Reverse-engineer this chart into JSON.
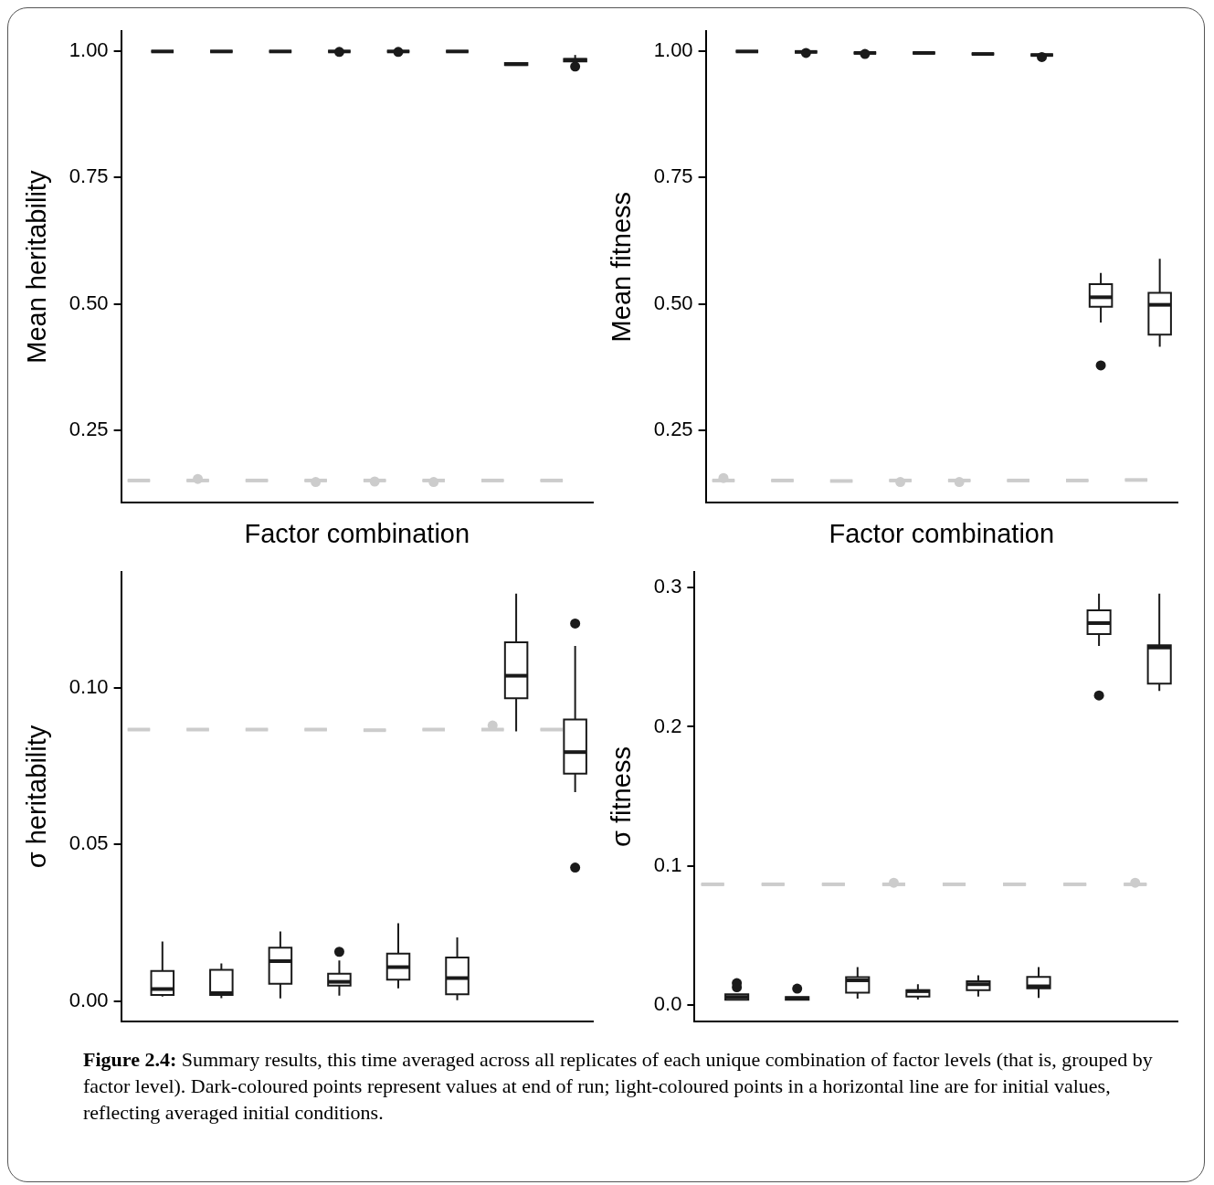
{
  "chart_data": [
    {
      "type": "box",
      "xlabel": "Factor combination",
      "ylabel": "Mean heritability",
      "categories": [
        null,
        null,
        null,
        null,
        null,
        null,
        null,
        null
      ],
      "ylim": [
        0.106,
        1.04
      ],
      "yticks": [
        0.25,
        {
          "value": 0.5,
          "label": "0.50"
        },
        0.75,
        {
          "value": 1,
          "label": "1.00"
        }
      ],
      "tick_labels": "y",
      "series": [
        {
          "color": "#cccccc",
          "boxes": [
            {
              "low": 0.15,
              "q1": 0.15,
              "median": 0.15,
              "q3": 0.15,
              "high": 0.15
            },
            {
              "low": 0.15,
              "q1": 0.15,
              "median": 0.15,
              "q3": 0.15,
              "high": 0.15,
              "outliers": [
                0.153
              ]
            },
            {
              "low": 0.15,
              "q1": 0.15,
              "median": 0.15,
              "q3": 0.15,
              "high": 0.15
            },
            {
              "low": 0.15,
              "q1": 0.15,
              "median": 0.15,
              "q3": 0.15,
              "high": 0.15,
              "outliers": [
                0.147
              ]
            },
            {
              "low": 0.15,
              "q1": 0.15,
              "median": 0.15,
              "q3": 0.15,
              "high": 0.15,
              "outliers": [
                0.148
              ]
            },
            {
              "low": 0.15,
              "q1": 0.15,
              "median": 0.15,
              "q3": 0.15,
              "high": 0.15,
              "outliers": [
                0.147
              ]
            },
            {
              "low": 0.15,
              "q1": 0.15,
              "median": 0.15,
              "q3": 0.15,
              "high": 0.15
            },
            {
              "low": 0.15,
              "q1": 0.15,
              "median": 0.15,
              "q3": 0.15,
              "high": 0.15
            }
          ]
        },
        {
          "color": "#1a1a1a",
          "boxes": [
            {
              "low": 1,
              "q1": 1,
              "median": 1,
              "q3": 1,
              "high": 1
            },
            {
              "low": 1,
              "q1": 1,
              "median": 1,
              "q3": 1,
              "high": 1
            },
            {
              "low": 1,
              "q1": 1,
              "median": 1,
              "q3": 1,
              "high": 1
            },
            {
              "low": 1,
              "q1": 1,
              "median": 1,
              "q3": 1,
              "high": 1,
              "outliers": [
                0.999
              ]
            },
            {
              "low": 1,
              "q1": 1,
              "median": 1,
              "q3": 1,
              "high": 1,
              "outliers": [
                0.999
              ]
            },
            {
              "low": 1,
              "q1": 1,
              "median": 1,
              "q3": 1,
              "high": 1
            },
            {
              "low": 0.973,
              "q1": 0.973,
              "median": 0.975,
              "q3": 0.977,
              "high": 0.977
            },
            {
              "low": 0.98,
              "q1": 0.98,
              "median": 0.983,
              "q3": 0.985,
              "high": 0.993,
              "outliers": [
                0.97
              ]
            }
          ]
        }
      ]
    },
    {
      "type": "box",
      "xlabel": "Factor combination",
      "ylabel": "Mean fitness",
      "categories": [
        null,
        null,
        null,
        null,
        null,
        null,
        null,
        null
      ],
      "ylim": [
        0.106,
        1.04
      ],
      "yticks": [
        0.25,
        {
          "value": 0.5,
          "label": "0.50"
        },
        0.75,
        {
          "value": 1,
          "label": "1.00"
        }
      ],
      "tick_labels": "y",
      "series": [
        {
          "color": "#cccccc",
          "boxes": [
            {
              "low": 0.15,
              "q1": 0.15,
              "median": 0.15,
              "q3": 0.15,
              "high": 0.15,
              "outliers": [
                0.155
              ]
            },
            {
              "low": 0.15,
              "q1": 0.15,
              "median": 0.15,
              "q3": 0.15,
              "high": 0.15
            },
            {
              "low": 0.149,
              "q1": 0.149,
              "median": 0.149,
              "q3": 0.149,
              "high": 0.149
            },
            {
              "low": 0.15,
              "q1": 0.15,
              "median": 0.15,
              "q3": 0.15,
              "high": 0.15,
              "outliers": [
                0.147
              ]
            },
            {
              "low": 0.15,
              "q1": 0.15,
              "median": 0.15,
              "q3": 0.15,
              "high": 0.15,
              "outliers": [
                0.147
              ]
            },
            {
              "low": 0.15,
              "q1": 0.15,
              "median": 0.15,
              "q3": 0.15,
              "high": 0.15
            },
            {
              "low": 0.15,
              "q1": 0.15,
              "median": 0.15,
              "q3": 0.15,
              "high": 0.15
            },
            {
              "low": 0.151,
              "q1": 0.151,
              "median": 0.151,
              "q3": 0.151,
              "high": 0.151
            }
          ]
        },
        {
          "color": "#1a1a1a",
          "boxes": [
            {
              "low": 1,
              "q1": 1,
              "median": 1,
              "q3": 1,
              "high": 1
            },
            {
              "low": 0.999,
              "q1": 0.999,
              "median": 0.999,
              "q3": 0.999,
              "high": 0.999,
              "outliers": [
                0.997
              ]
            },
            {
              "low": 0.997,
              "q1": 0.997,
              "median": 0.997,
              "q3": 0.997,
              "high": 0.997,
              "outliers": [
                0.995
              ]
            },
            {
              "low": 0.997,
              "q1": 0.997,
              "median": 0.997,
              "q3": 0.997,
              "high": 0.997
            },
            {
              "low": 0.995,
              "q1": 0.995,
              "median": 0.995,
              "q3": 0.995,
              "high": 0.995
            },
            {
              "low": 0.993,
              "q1": 0.993,
              "median": 0.993,
              "q3": 0.993,
              "high": 0.993,
              "outliers": [
                0.989
              ]
            },
            {
              "low": 0.463,
              "q1": 0.494,
              "median": 0.513,
              "q3": 0.539,
              "high": 0.561,
              "outliers": [
                0.378
              ]
            },
            {
              "low": 0.415,
              "q1": 0.439,
              "median": 0.498,
              "q3": 0.522,
              "high": 0.589
            }
          ]
        }
      ]
    },
    {
      "type": "box",
      "ylabel": "σ heritability",
      "categories": [
        null,
        null,
        null,
        null,
        null,
        null,
        null,
        null
      ],
      "ylim": [
        -0.0065,
        0.137
      ],
      "yticks": [
        {
          "value": 0,
          "label": "0.00"
        },
        {
          "value": 0.05,
          "label": "0.05"
        },
        {
          "value": 0.1,
          "label": "0.10"
        }
      ],
      "tick_labels": "y",
      "series": [
        {
          "color": "#cccccc",
          "boxes": [
            {
              "low": 0.0867,
              "q1": 0.0867,
              "median": 0.0867,
              "q3": 0.0867,
              "high": 0.0867
            },
            {
              "low": 0.0867,
              "q1": 0.0867,
              "median": 0.0867,
              "q3": 0.0867,
              "high": 0.0867
            },
            {
              "low": 0.0867,
              "q1": 0.0867,
              "median": 0.0867,
              "q3": 0.0867,
              "high": 0.0867
            },
            {
              "low": 0.0867,
              "q1": 0.0867,
              "median": 0.0867,
              "q3": 0.0867,
              "high": 0.0867
            },
            {
              "low": 0.0865,
              "q1": 0.0865,
              "median": 0.0865,
              "q3": 0.0865,
              "high": 0.0865
            },
            {
              "low": 0.0867,
              "q1": 0.0867,
              "median": 0.0867,
              "q3": 0.0867,
              "high": 0.0867
            },
            {
              "low": 0.0867,
              "q1": 0.0867,
              "median": 0.0867,
              "q3": 0.0867,
              "high": 0.0867,
              "outliers": [
                0.088
              ]
            },
            {
              "low": 0.0867,
              "q1": 0.0867,
              "median": 0.0867,
              "q3": 0.0867,
              "high": 0.0867
            }
          ]
        },
        {
          "color": "#1a1a1a",
          "boxes": [
            {
              "low": 0.0014,
              "q1": 0.0019,
              "median": 0.0038,
              "q3": 0.0096,
              "high": 0.019
            },
            {
              "low": 0.0009,
              "q1": 0.0019,
              "median": 0.0025,
              "q3": 0.0099,
              "high": 0.012
            },
            {
              "low": 0.0008,
              "q1": 0.0055,
              "median": 0.0127,
              "q3": 0.017,
              "high": 0.0222
            },
            {
              "low": 0.0017,
              "q1": 0.0049,
              "median": 0.0061,
              "q3": 0.0087,
              "high": 0.0129,
              "outliers": [
                0.0157
              ]
            },
            {
              "low": 0.004,
              "q1": 0.0068,
              "median": 0.0108,
              "q3": 0.0151,
              "high": 0.0248
            },
            {
              "low": 0.0002,
              "q1": 0.0021,
              "median": 0.0073,
              "q3": 0.0139,
              "high": 0.0203
            },
            {
              "low": 0.0861,
              "q1": 0.0967,
              "median": 0.1039,
              "q3": 0.1146,
              "high": 0.1301
            },
            {
              "low": 0.0667,
              "q1": 0.0726,
              "median": 0.0795,
              "q3": 0.0899,
              "high": 0.1134,
              "outliers": [
                0.1206,
                0.0426
              ]
            }
          ]
        }
      ]
    },
    {
      "type": "box",
      "ylabel": "σ fitness",
      "categories": [
        null,
        null,
        null,
        null,
        null,
        null,
        null,
        null
      ],
      "ylim": [
        -0.0114,
        0.311
      ],
      "yticks": [
        {
          "value": 0,
          "label": "0.0"
        },
        0.1,
        0.2,
        0.3
      ],
      "tick_labels": "y",
      "annotations": [
        "Figure 2.4: Summary results, this time averaged across all replicates of each unique combination of factor levels (that is, grouped by factor level). Dark-coloured points represent values at end of run; light-coloured points in a horizontal line are for initial values, reflecting averaged initial conditions."
      ],
      "series": [
        {
          "color": "#cccccc",
          "boxes": [
            {
              "low": 0.0869,
              "q1": 0.0869,
              "median": 0.0869,
              "q3": 0.0869,
              "high": 0.0869
            },
            {
              "low": 0.0869,
              "q1": 0.0869,
              "median": 0.0869,
              "q3": 0.0869,
              "high": 0.0869
            },
            {
              "low": 0.0869,
              "q1": 0.0869,
              "median": 0.0869,
              "q3": 0.0869,
              "high": 0.0869
            },
            {
              "low": 0.0869,
              "q1": 0.0869,
              "median": 0.0869,
              "q3": 0.0869,
              "high": 0.0869,
              "outliers": [
                0.088
              ]
            },
            {
              "low": 0.0869,
              "q1": 0.0869,
              "median": 0.0869,
              "q3": 0.0869,
              "high": 0.0869
            },
            {
              "low": 0.0869,
              "q1": 0.0869,
              "median": 0.0869,
              "q3": 0.0869,
              "high": 0.0869
            },
            {
              "low": 0.0869,
              "q1": 0.0869,
              "median": 0.0869,
              "q3": 0.0869,
              "high": 0.0869
            },
            {
              "low": 0.0869,
              "q1": 0.0869,
              "median": 0.0869,
              "q3": 0.0869,
              "high": 0.0869,
              "outliers": [
                0.088
              ]
            }
          ]
        },
        {
          "color": "#1a1a1a",
          "boxes": [
            {
              "low": 0.004,
              "q1": 0.004,
              "median": 0.006,
              "q3": 0.008,
              "high": 0.008,
              "outliers": [
                0.013,
                0.016
              ]
            },
            {
              "low": 0.004,
              "q1": 0.004,
              "median": 0.005,
              "q3": 0.006,
              "high": 0.006,
              "outliers": [
                0.012
              ]
            },
            {
              "low": 0.0049,
              "q1": 0.0091,
              "median": 0.018,
              "q3": 0.0202,
              "high": 0.0275
            },
            {
              "low": 0.0042,
              "q1": 0.0064,
              "median": 0.0102,
              "q3": 0.011,
              "high": 0.0152
            },
            {
              "low": 0.0064,
              "q1": 0.011,
              "median": 0.0152,
              "q3": 0.0173,
              "high": 0.0216
            },
            {
              "low": 0.0053,
              "q1": 0.0123,
              "median": 0.0137,
              "q3": 0.0205,
              "high": 0.0275
            },
            {
              "low": 0.258,
              "q1": 0.2666,
              "median": 0.2744,
              "q3": 0.2836,
              "high": 0.2956,
              "outliers": [
                0.2225
              ]
            },
            {
              "low": 0.2257,
              "q1": 0.231,
              "median": 0.2569,
              "q3": 0.2585,
              "high": 0.2956
            }
          ]
        }
      ]
    }
  ]
}
